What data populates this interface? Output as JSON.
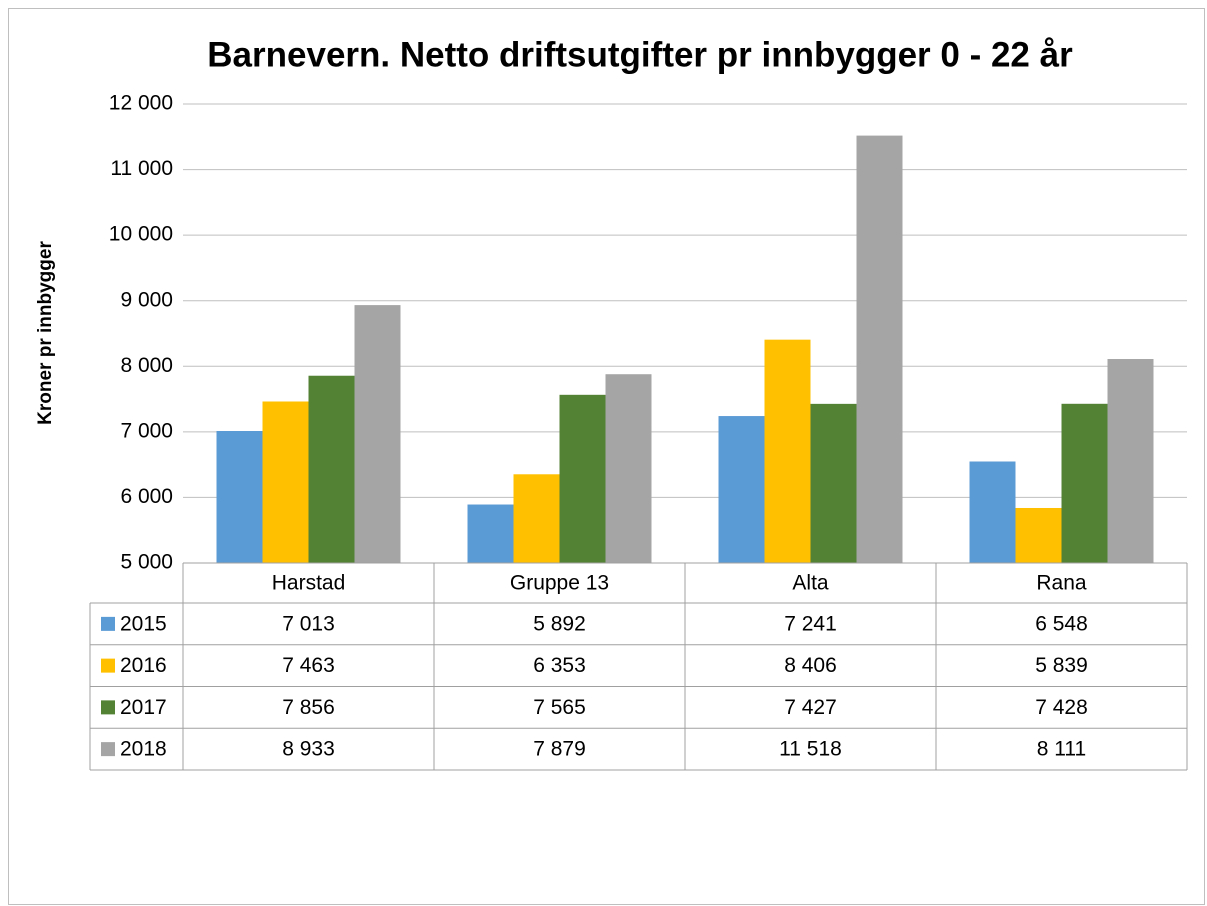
{
  "chart_data": {
    "type": "bar",
    "title": "Barnevern. Netto driftsutgifter pr innbygger 0 - 22 år",
    "y_label": "Kroner pr innbygger",
    "categories": [
      "Harstad",
      "Gruppe 13",
      "Alta",
      "Rana"
    ],
    "series": [
      {
        "name": "2015",
        "color": "#5b9bd5",
        "values": [
          7013,
          5892,
          7241,
          6548
        ],
        "value_labels": [
          "7 013",
          "5 892",
          "7 241",
          "6 548"
        ]
      },
      {
        "name": "2016",
        "color": "#ffc000",
        "values": [
          7463,
          6353,
          8406,
          5839
        ],
        "value_labels": [
          "7 463",
          "6 353",
          "8 406",
          "5 839"
        ]
      },
      {
        "name": "2017",
        "color": "#548235",
        "values": [
          7856,
          7565,
          7427,
          7428
        ],
        "value_labels": [
          "7 856",
          "7 565",
          "7 427",
          "7 428"
        ]
      },
      {
        "name": "2018",
        "color": "#a5a5a5",
        "values": [
          8933,
          7879,
          11518,
          8111
        ],
        "value_labels": [
          "8 933",
          "7 879",
          "11 518",
          "8 111"
        ]
      }
    ],
    "ylim": [
      5000,
      12000
    ],
    "yticks": [
      {
        "value": 5000,
        "label": "5 000"
      },
      {
        "value": 6000,
        "label": "6 000"
      },
      {
        "value": 7000,
        "label": "7 000"
      },
      {
        "value": 8000,
        "label": "8 000"
      },
      {
        "value": 9000,
        "label": "9 000"
      },
      {
        "value": 10000,
        "label": "10 000"
      },
      {
        "value": 11000,
        "label": "11 000"
      },
      {
        "value": 12000,
        "label": "12 000"
      }
    ],
    "grid": true
  }
}
